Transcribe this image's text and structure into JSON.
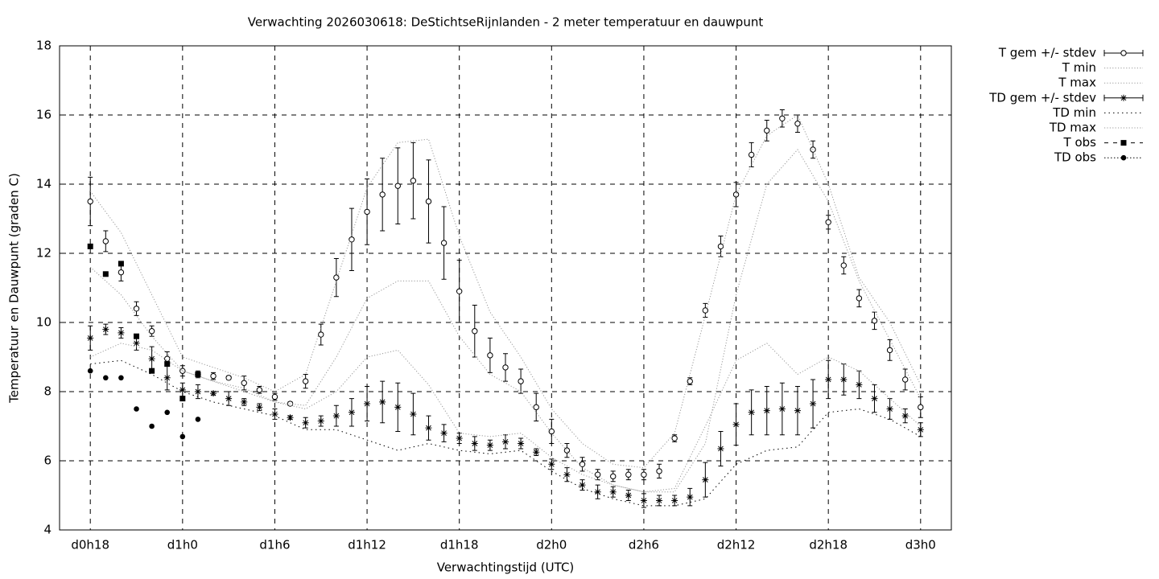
{
  "chart_data": {
    "type": "line",
    "title": "Verwachting 2026030618: DeStichtseRijnlanden - 2 meter temperatuur en dauwpunt",
    "xlabel": "Verwachtingstijd (UTC)",
    "ylabel": "Temperatuur en Dauwpunt (graden C)",
    "xlim": [
      16,
      74
    ],
    "xticks": [
      {
        "value": 18,
        "label": "d0h18"
      },
      {
        "value": 24,
        "label": "d1h0"
      },
      {
        "value": 30,
        "label": "d1h6"
      },
      {
        "value": 36,
        "label": "d1h12"
      },
      {
        "value": 42,
        "label": "d1h18"
      },
      {
        "value": 48,
        "label": "d2h0"
      },
      {
        "value": 54,
        "label": "d2h6"
      },
      {
        "value": 60,
        "label": "d2h12"
      },
      {
        "value": 66,
        "label": "d2h18"
      },
      {
        "value": 72,
        "label": "d3h0"
      }
    ],
    "ylim": [
      4,
      18
    ],
    "yticks": [
      4,
      6,
      8,
      10,
      12,
      14,
      16,
      18
    ],
    "grid": true,
    "series": [
      {
        "name": "T gem +/- stdev",
        "style": "errorbars-circle",
        "color": "#000000",
        "x": [
          18,
          19,
          20,
          21,
          22,
          23,
          24,
          25,
          26,
          27,
          28,
          29,
          30,
          31,
          32,
          33,
          34,
          35,
          36,
          37,
          38,
          39,
          40,
          41,
          42,
          43,
          44,
          45,
          46,
          47,
          48,
          49,
          50,
          51,
          52,
          53,
          54,
          55,
          56,
          57,
          58,
          59,
          60,
          61,
          62,
          63,
          64,
          65,
          66,
          67,
          68,
          69,
          70,
          71,
          72
        ],
        "values": [
          13.5,
          12.35,
          11.45,
          10.4,
          9.75,
          8.95,
          8.6,
          8.5,
          8.45,
          8.4,
          8.25,
          8.05,
          7.85,
          7.65,
          8.3,
          9.65,
          11.3,
          12.4,
          13.2,
          13.7,
          13.95,
          14.1,
          13.5,
          12.3,
          10.9,
          9.75,
          9.05,
          8.7,
          8.3,
          7.55,
          6.85,
          6.3,
          5.9,
          5.6,
          5.55,
          5.6,
          5.6,
          5.7,
          6.65,
          8.3,
          10.35,
          12.2,
          13.7,
          14.85,
          15.55,
          15.9,
          15.75,
          15.0,
          12.9,
          11.65,
          10.7,
          10.05,
          9.2,
          8.35,
          7.55
        ],
        "errors": [
          0.7,
          0.3,
          0.25,
          0.2,
          0.15,
          0.2,
          0.15,
          0.1,
          0.1,
          0.05,
          0.2,
          0.1,
          0.1,
          0.05,
          0.2,
          0.3,
          0.55,
          0.9,
          0.95,
          1.05,
          1.1,
          1.1,
          1.2,
          1.05,
          0.9,
          0.75,
          0.5,
          0.4,
          0.35,
          0.4,
          0.35,
          0.2,
          0.2,
          0.15,
          0.15,
          0.15,
          0.15,
          0.2,
          0.1,
          0.1,
          0.2,
          0.3,
          0.35,
          0.35,
          0.3,
          0.25,
          0.25,
          0.25,
          0.2,
          0.25,
          0.25,
          0.25,
          0.3,
          0.3,
          0.3
        ]
      },
      {
        "name": "T min",
        "style": "dotted",
        "color": "#999999",
        "x": [
          18,
          20,
          22,
          24,
          26,
          28,
          30,
          32,
          34,
          36,
          38,
          40,
          42,
          44,
          46,
          48,
          50,
          52,
          54,
          56,
          58,
          60,
          62,
          64,
          66,
          68,
          70,
          72
        ],
        "values": [
          11.6,
          10.8,
          9.6,
          8.6,
          8.3,
          8.1,
          7.7,
          7.6,
          9.0,
          10.7,
          11.2,
          11.2,
          9.6,
          8.5,
          8.0,
          6.8,
          5.8,
          5.3,
          5.1,
          5.1,
          6.5,
          10.8,
          14.0,
          15.0,
          13.5,
          11.2,
          9.5,
          7.8
        ]
      },
      {
        "name": "T max",
        "style": "dotted",
        "color": "#999999",
        "x": [
          18,
          20,
          22,
          24,
          26,
          28,
          30,
          32,
          34,
          36,
          38,
          40,
          42,
          44,
          46,
          48,
          50,
          52,
          54,
          56,
          58,
          60,
          62,
          64,
          66,
          68,
          70,
          72
        ],
        "values": [
          13.8,
          12.6,
          10.8,
          9.0,
          8.7,
          8.4,
          8.0,
          8.5,
          11.2,
          13.9,
          15.2,
          15.3,
          12.5,
          10.3,
          9.0,
          7.5,
          6.5,
          5.9,
          5.8,
          6.8,
          10.2,
          13.7,
          15.4,
          16.0,
          14.0,
          11.3,
          10.0,
          8.2
        ]
      },
      {
        "name": "TD gem +/- stdev",
        "style": "errorbars-star",
        "color": "#000000",
        "x": [
          18,
          19,
          20,
          21,
          22,
          23,
          24,
          25,
          26,
          27,
          28,
          29,
          30,
          31,
          32,
          33,
          34,
          35,
          36,
          37,
          38,
          39,
          40,
          41,
          42,
          43,
          44,
          45,
          46,
          47,
          48,
          49,
          50,
          51,
          52,
          53,
          54,
          55,
          56,
          57,
          58,
          59,
          60,
          61,
          62,
          63,
          64,
          65,
          66,
          67,
          68,
          69,
          70,
          71,
          72
        ],
        "values": [
          9.55,
          9.8,
          9.7,
          9.4,
          8.95,
          8.4,
          8.05,
          8.0,
          7.95,
          7.8,
          7.7,
          7.55,
          7.35,
          7.25,
          7.1,
          7.15,
          7.3,
          7.4,
          7.65,
          7.7,
          7.55,
          7.35,
          6.95,
          6.8,
          6.65,
          6.5,
          6.45,
          6.55,
          6.5,
          6.25,
          5.9,
          5.6,
          5.3,
          5.1,
          5.1,
          5.0,
          4.85,
          4.85,
          4.85,
          4.95,
          5.45,
          6.35,
          7.05,
          7.4,
          7.45,
          7.5,
          7.45,
          7.65,
          8.35,
          8.35,
          8.2,
          7.8,
          7.5,
          7.3,
          6.9
        ],
        "errors": [
          0.35,
          0.15,
          0.15,
          0.2,
          0.35,
          0.35,
          0.2,
          0.2,
          0.05,
          0.2,
          0.1,
          0.1,
          0.15,
          0.05,
          0.15,
          0.15,
          0.3,
          0.4,
          0.5,
          0.6,
          0.7,
          0.6,
          0.35,
          0.25,
          0.15,
          0.2,
          0.15,
          0.2,
          0.15,
          0.1,
          0.15,
          0.2,
          0.15,
          0.2,
          0.15,
          0.15,
          0.2,
          0.15,
          0.15,
          0.25,
          0.5,
          0.5,
          0.6,
          0.65,
          0.7,
          0.75,
          0.7,
          0.7,
          0.55,
          0.45,
          0.4,
          0.4,
          0.3,
          0.2,
          0.2
        ]
      },
      {
        "name": "TD min",
        "style": "dotted-sparse",
        "color": "#000000",
        "x": [
          18,
          20,
          22,
          24,
          26,
          28,
          30,
          32,
          34,
          36,
          38,
          40,
          42,
          44,
          46,
          48,
          50,
          52,
          54,
          56,
          58,
          60,
          62,
          64,
          66,
          68,
          70,
          72
        ],
        "values": [
          8.8,
          8.9,
          8.5,
          8.0,
          7.7,
          7.5,
          7.3,
          6.9,
          6.9,
          6.6,
          6.3,
          6.5,
          6.3,
          6.2,
          6.3,
          5.7,
          5.2,
          4.9,
          4.7,
          4.7,
          4.9,
          5.9,
          6.3,
          6.4,
          7.4,
          7.5,
          7.2,
          6.7
        ]
      },
      {
        "name": "TD max",
        "style": "dotted",
        "color": "#999999",
        "x": [
          18,
          20,
          22,
          24,
          26,
          28,
          30,
          32,
          34,
          36,
          38,
          40,
          42,
          44,
          46,
          48,
          50,
          52,
          54,
          56,
          58,
          60,
          62,
          64,
          66,
          68,
          70,
          72
        ],
        "values": [
          9.0,
          9.4,
          9.2,
          8.6,
          8.3,
          8.0,
          7.7,
          7.5,
          8.0,
          9.0,
          9.2,
          8.2,
          6.8,
          6.7,
          6.8,
          6.1,
          5.6,
          5.3,
          5.1,
          5.2,
          7.0,
          8.9,
          9.4,
          8.5,
          9.0,
          8.6,
          7.8,
          7.0
        ]
      },
      {
        "name": "T obs",
        "style": "points-square",
        "color": "#000000",
        "x": [
          18,
          19,
          20,
          21,
          22,
          23,
          24,
          25
        ],
        "values": [
          12.2,
          11.4,
          11.7,
          9.6,
          8.6,
          8.8,
          7.8,
          8.5
        ]
      },
      {
        "name": "TD obs",
        "style": "points-dot",
        "color": "#000000",
        "x": [
          18,
          19,
          20,
          21,
          22,
          23,
          24,
          25
        ],
        "values": [
          8.6,
          8.4,
          8.4,
          7.5,
          7.0,
          7.4,
          6.7,
          7.2
        ]
      }
    ]
  }
}
